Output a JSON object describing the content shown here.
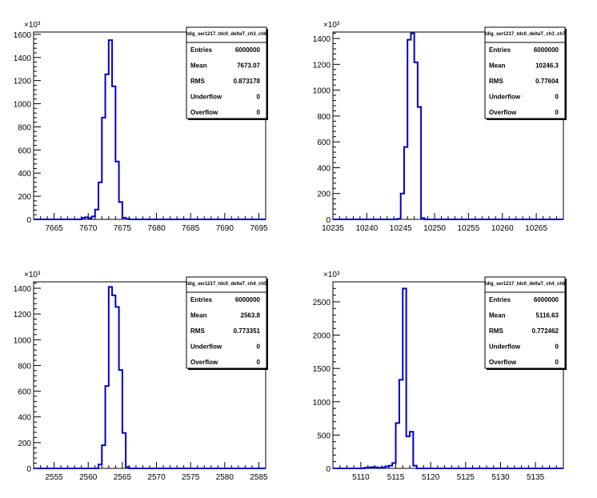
{
  "chart_data": [
    {
      "type": "histogram",
      "title": "tdig_ser1217_tdc0_deltaT_ch3_ch6",
      "multiplier": "×10³",
      "xlim": [
        7662,
        7696
      ],
      "xticks": [
        7665,
        7670,
        7675,
        7680,
        7685,
        7690,
        7695
      ],
      "ylim": [
        0,
        1620
      ],
      "yticks": [
        0,
        200,
        400,
        600,
        800,
        1000,
        1200,
        1400,
        1600
      ],
      "bins": [
        [
          7668.5,
          0
        ],
        [
          7669,
          12
        ],
        [
          7669.5,
          18
        ],
        [
          7670,
          10
        ],
        [
          7670.5,
          25
        ],
        [
          7671,
          85
        ],
        [
          7671.5,
          320
        ],
        [
          7672,
          880
        ],
        [
          7672.5,
          1255
        ],
        [
          7673,
          1550
        ],
        [
          7673.5,
          1150
        ],
        [
          7674,
          500
        ],
        [
          7674.5,
          150
        ],
        [
          7675,
          15
        ],
        [
          7675.5,
          5
        ],
        [
          7676,
          0
        ]
      ],
      "stats": [
        {
          "key": "Entries",
          "value": "6000000"
        },
        {
          "key": "Mean",
          "value": "7673.07"
        },
        {
          "key": "RMS",
          "value": "0.873178"
        },
        {
          "key": "Underflow",
          "value": "0"
        },
        {
          "key": "Overflow",
          "value": "0"
        }
      ]
    },
    {
      "type": "histogram",
      "title": "tdig_ser1217_tdc0_deltaT_ch3_ch7",
      "multiplier": "×10³",
      "xlim": [
        10235,
        10269
      ],
      "xticks": [
        10235,
        10240,
        10245,
        10250,
        10255,
        10260,
        10265
      ],
      "ylim": [
        0,
        1450
      ],
      "yticks": [
        0,
        200,
        400,
        600,
        800,
        1000,
        1200,
        1400
      ],
      "bins": [
        [
          10244,
          0
        ],
        [
          10244.5,
          5
        ],
        [
          10245,
          200
        ],
        [
          10245.5,
          560
        ],
        [
          10246,
          1390
        ],
        [
          10246.5,
          1440
        ],
        [
          10247,
          1215
        ],
        [
          10247.5,
          870
        ],
        [
          10248,
          10
        ],
        [
          10248.5,
          0
        ]
      ],
      "stats": [
        {
          "key": "Entries",
          "value": "6000000"
        },
        {
          "key": "Mean",
          "value": "10246.3"
        },
        {
          "key": "RMS",
          "value": "0.77604"
        },
        {
          "key": "Underflow",
          "value": "0"
        },
        {
          "key": "Overflow",
          "value": "0"
        }
      ]
    },
    {
      "type": "histogram",
      "title": "tdig_ser1217_tdc0_deltaT_ch4_ch5",
      "multiplier": "×10³",
      "xlim": [
        2552,
        2586
      ],
      "xticks": [
        2555,
        2560,
        2565,
        2570,
        2575,
        2580,
        2585
      ],
      "ylim": [
        0,
        1450
      ],
      "yticks": [
        0,
        200,
        400,
        600,
        800,
        1000,
        1200,
        1400
      ],
      "bins": [
        [
          2561,
          0
        ],
        [
          2561.5,
          30
        ],
        [
          2562,
          180
        ],
        [
          2562.5,
          640
        ],
        [
          2563,
          1410
        ],
        [
          2563.5,
          1345
        ],
        [
          2564,
          1255
        ],
        [
          2564.5,
          765
        ],
        [
          2565,
          275
        ],
        [
          2565.5,
          10
        ],
        [
          2566,
          0
        ]
      ],
      "stats": [
        {
          "key": "Entries",
          "value": "6000000"
        },
        {
          "key": "Mean",
          "value": "2563.8"
        },
        {
          "key": "RMS",
          "value": "0.773351"
        },
        {
          "key": "Underflow",
          "value": "0"
        },
        {
          "key": "Overflow",
          "value": "0"
        }
      ]
    },
    {
      "type": "histogram",
      "title": "tdig_ser1217_tdc0_deltaT_ch4_ch8",
      "multiplier": "×10³",
      "xlim": [
        5106,
        5139
      ],
      "xticks": [
        5110,
        5115,
        5120,
        5125,
        5130,
        5135
      ],
      "ylim": [
        0,
        2800
      ],
      "yticks": [
        0,
        500,
        1000,
        1500,
        2000,
        2500
      ],
      "bins": [
        [
          5110,
          0
        ],
        [
          5110.5,
          10
        ],
        [
          5111,
          15
        ],
        [
          5111.5,
          20
        ],
        [
          5112,
          15
        ],
        [
          5112.5,
          10
        ],
        [
          5113,
          15
        ],
        [
          5113.5,
          30
        ],
        [
          5114,
          40
        ],
        [
          5114.5,
          80
        ],
        [
          5115,
          680
        ],
        [
          5115.5,
          1330
        ],
        [
          5116,
          2700
        ],
        [
          5116.5,
          480
        ],
        [
          5117,
          550
        ],
        [
          5117.5,
          40
        ],
        [
          5118,
          0
        ]
      ],
      "stats": [
        {
          "key": "Entries",
          "value": "6000000"
        },
        {
          "key": "Mean",
          "value": "5116.63"
        },
        {
          "key": "RMS",
          "value": "0.772462"
        },
        {
          "key": "Underflow",
          "value": "0"
        },
        {
          "key": "Overflow",
          "value": "0"
        }
      ]
    }
  ]
}
